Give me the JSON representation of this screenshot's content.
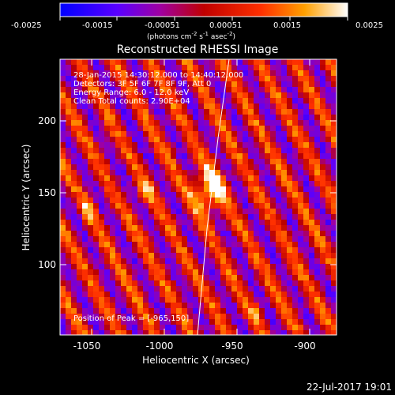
{
  "colorbar": {
    "tick_labels": [
      "-0.0025",
      "-0.0015",
      "-0.00051",
      "0.00051",
      "0.0015",
      "0.0025"
    ],
    "unit_main": "(photons cm",
    "unit_exp1": "-2",
    "unit_mid": " s",
    "unit_exp2": "-1",
    "unit_tail": " asec",
    "unit_exp3": "-2",
    "unit_close": ")"
  },
  "plot": {
    "title": "Reconstructed RHESSI Image",
    "info_lines": [
      "28-Jan-2015 14:30:12.000 to 14:40:12.000",
      "Detectors: 3F 5F 6F 7F 8F 9F, Att 0",
      "Energy Range: 6.0 - 12.0 keV",
      "Clean    Total counts: 2.90E+04"
    ],
    "peak_label": "Position of Peak = [-965,150]",
    "xlabel": "Heliocentric X (arcsec)",
    "ylabel": "Heliocentric Y (arcsec)",
    "x_ticks": [
      "-1050",
      "-1000",
      "-950",
      "-900"
    ],
    "y_ticks": [
      "100",
      "150",
      "200"
    ]
  },
  "footer": {
    "timestamp": "22-Jul-2017 19:01"
  },
  "chart_data": {
    "type": "heatmap",
    "title": "Reconstructed RHESSI Image",
    "xlabel": "Heliocentric X (arcsec)",
    "ylabel": "Heliocentric Y (arcsec)",
    "xlim": [
      -1068,
      -877
    ],
    "ylim": [
      47,
      244
    ],
    "colorbar_range": [
      -0.0025,
      0.0025
    ],
    "peak": [
      -965,
      150
    ],
    "colormap": "hot-blue"
  }
}
